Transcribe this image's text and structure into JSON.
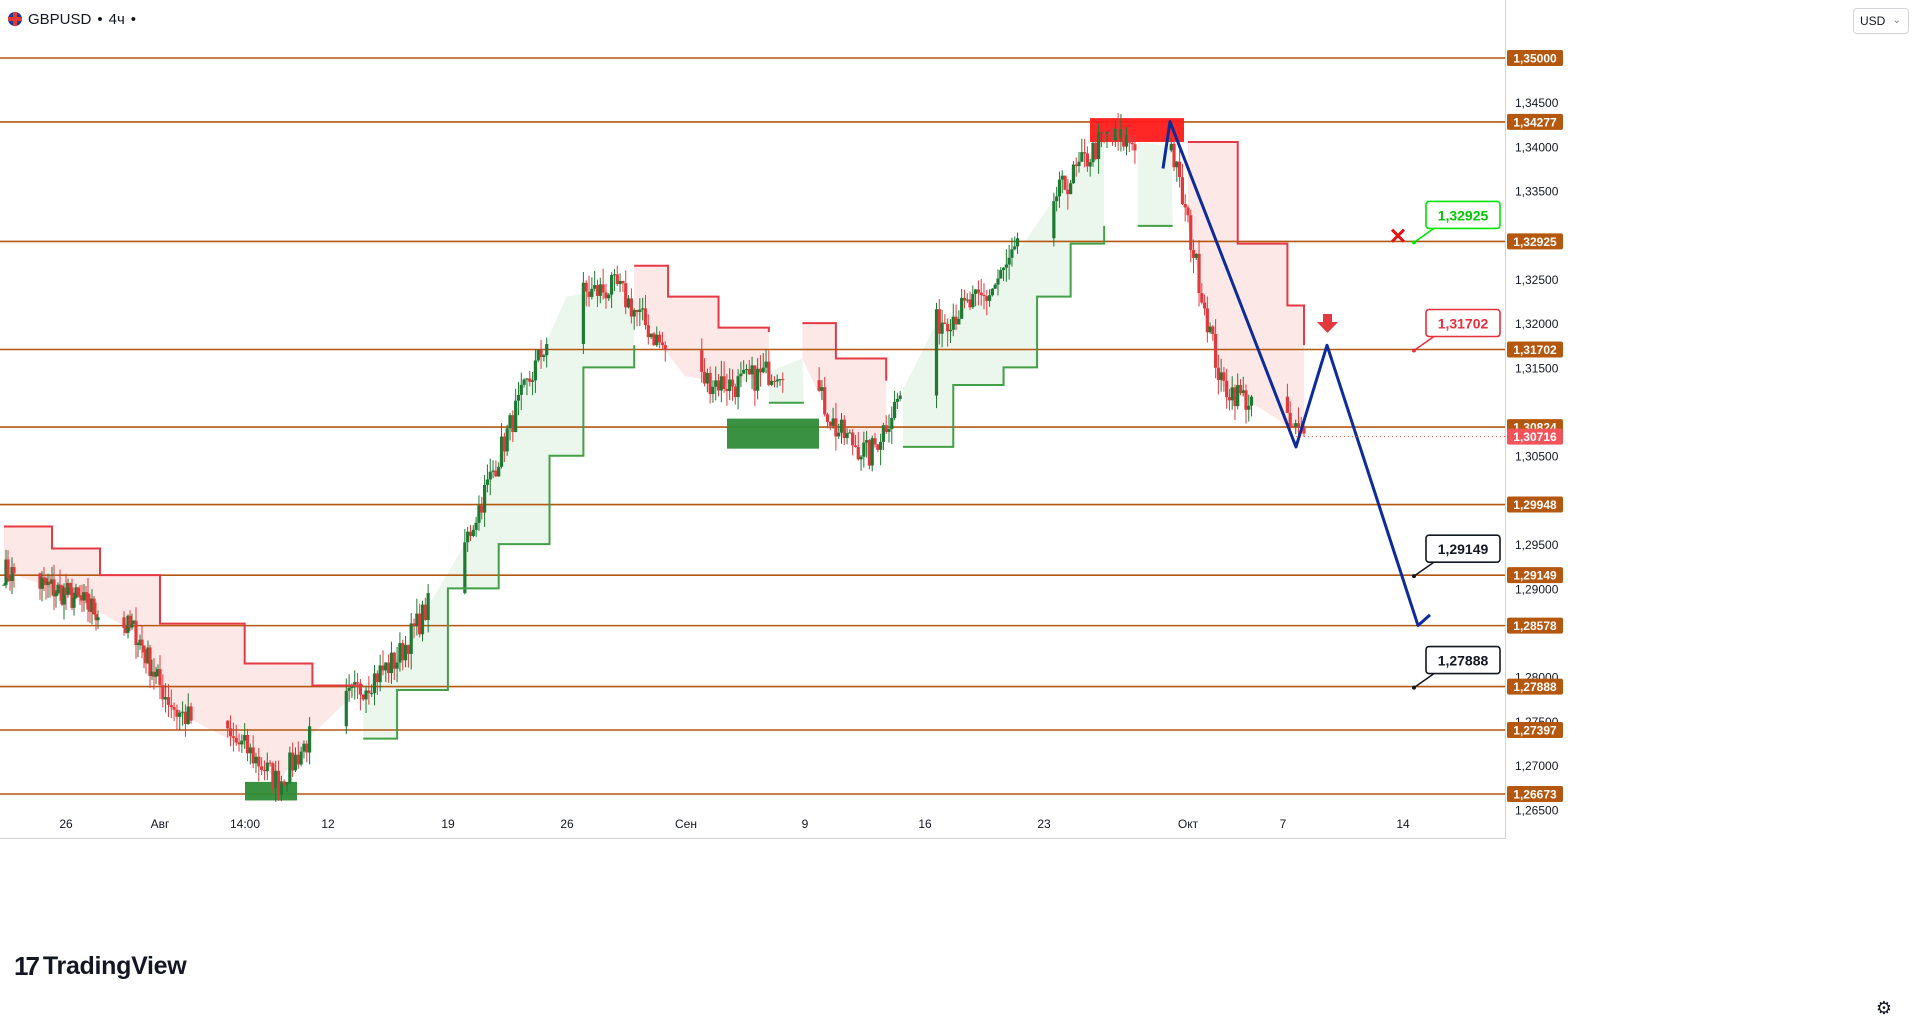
{
  "header": {
    "symbol": "GBPUSD",
    "interval": "4ч",
    "suffix": "•"
  },
  "currency_button": {
    "label": "USD",
    "chevron": "⌄"
  },
  "branding": {
    "logo_text": "TradingView",
    "logo_mark": "17"
  },
  "settings_icon": "gear-icon",
  "colors": {
    "level_line": "#b4570f",
    "level_badge": "#b4570f",
    "bull_candle": "#1e7a32",
    "bear_candle": "#e03a3e",
    "trend_up": "#43a047",
    "trend_down": "#e53945",
    "trend_up_fill": "#e8f5e9",
    "trend_down_fill": "#fde4e4",
    "path": "#0d2b9a",
    "current_price": "#f2545b",
    "supply_zone": "#ff1a1a",
    "demand_zone": "#2e8b37"
  },
  "chart_data": {
    "type": "candlestick",
    "symbol": "GBPUSD",
    "interval": "4ч",
    "ylim": [
      1.2645,
      1.3525
    ],
    "price_axis_ticks": [
      "1,34500",
      "1,34000",
      "1,33500",
      "1,32500",
      "1,32000",
      "1,31500",
      "1,30500",
      "1,29500",
      "1,29000",
      "1,28000",
      "1,27500",
      "1,27000",
      "1,26500"
    ],
    "time_axis_labels": [
      "26",
      "Авг",
      "14:00",
      "12",
      "19",
      "26",
      "Сен",
      "9",
      "16",
      "23",
      "Окт",
      "7",
      "14"
    ],
    "horizontal_levels": [
      {
        "price": 1.35,
        "label": "1,35000"
      },
      {
        "price": 1.34277,
        "label": "1,34277"
      },
      {
        "price": 1.32925,
        "label": "1,32925"
      },
      {
        "price": 1.31702,
        "label": "1,31702"
      },
      {
        "price": 1.30824,
        "label": "1,30824"
      },
      {
        "price": 1.29948,
        "label": "1,29948"
      },
      {
        "price": 1.29149,
        "label": "1,29149"
      },
      {
        "price": 1.28578,
        "label": "1,28578"
      },
      {
        "price": 1.27888,
        "label": "1,27888"
      },
      {
        "price": 1.27397,
        "label": "1,27397"
      },
      {
        "price": 1.26673,
        "label": "1,26673"
      }
    ],
    "current_price": {
      "price": 1.30716,
      "label": "1,30716"
    },
    "target_callouts": [
      {
        "label": "1,32925",
        "price": 1.32925,
        "style": "green",
        "status": "cancelled"
      },
      {
        "label": "1,31702",
        "price": 1.31702,
        "style": "red"
      },
      {
        "label": "1,29149",
        "price": 1.29149,
        "style": "black"
      },
      {
        "label": "1,27888",
        "price": 1.27888,
        "style": "black"
      }
    ],
    "zones": [
      {
        "type": "supply",
        "price_top": 1.3432,
        "price_bottom": 1.3405
      },
      {
        "type": "demand",
        "price_top": 1.3092,
        "price_bottom": 1.3058
      },
      {
        "type": "demand",
        "price_top": 1.2681,
        "price_bottom": 1.266
      }
    ],
    "projected_path_prices": [
      1.3375,
      1.3428,
      1.306,
      1.3175,
      1.2858,
      1.287
    ],
    "candle_keypoints": [
      {
        "date": "2024-07-19",
        "close": 1.292
      },
      {
        "date": "2024-07-24",
        "close": 1.2895
      },
      {
        "date": "2024-07-30",
        "close": 1.285
      },
      {
        "date": "2024-08-02",
        "close": 1.276
      },
      {
        "date": "2024-08-06",
        "close": 1.272
      },
      {
        "date": "2024-08-08",
        "close": 1.268
      },
      {
        "date": "2024-08-10",
        "close": 1.2735
      },
      {
        "date": "2024-08-13",
        "close": 1.279
      },
      {
        "date": "2024-08-15",
        "close": 1.282
      },
      {
        "date": "2024-08-19",
        "close": 1.295
      },
      {
        "date": "2024-08-22",
        "close": 1.31
      },
      {
        "date": "2024-08-25",
        "close": 1.323
      },
      {
        "date": "2024-08-28",
        "close": 1.324
      },
      {
        "date": "2024-09-01",
        "close": 1.314
      },
      {
        "date": "2024-09-04",
        "close": 1.313
      },
      {
        "date": "2024-09-08",
        "close": 1.316
      },
      {
        "date": "2024-09-10",
        "close": 1.308
      },
      {
        "date": "2024-09-12",
        "close": 1.305
      },
      {
        "date": "2024-09-16",
        "close": 1.32
      },
      {
        "date": "2024-09-19",
        "close": 1.323
      },
      {
        "date": "2024-09-23",
        "close": 1.334
      },
      {
        "date": "2024-09-26",
        "close": 1.341
      },
      {
        "date": "2024-09-30",
        "close": 1.34
      },
      {
        "date": "2024-10-03",
        "close": 1.313
      },
      {
        "date": "2024-10-04",
        "close": 1.312
      },
      {
        "date": "2024-10-08",
        "close": 1.3072
      }
    ],
    "trend_stop_lines": [
      {
        "trend": "down",
        "points": [
          [
            "2024-07-19",
            1.297
          ],
          [
            "2024-07-23",
            1.2945
          ],
          [
            "2024-07-27",
            1.2915
          ],
          [
            "2024-08-01",
            1.286
          ],
          [
            "2024-08-06",
            1.2815
          ],
          [
            "2024-08-10",
            1.279
          ],
          [
            "2024-08-13",
            1.279
          ]
        ]
      },
      {
        "trend": "up",
        "points": [
          [
            "2024-08-13",
            1.273
          ],
          [
            "2024-08-15",
            1.2785
          ],
          [
            "2024-08-18",
            1.29
          ],
          [
            "2024-08-21",
            1.295
          ],
          [
            "2024-08-24",
            1.305
          ],
          [
            "2024-08-26",
            1.315
          ],
          [
            "2024-08-29",
            1.3175
          ]
        ]
      },
      {
        "trend": "down",
        "points": [
          [
            "2024-08-29",
            1.3265
          ],
          [
            "2024-08-31",
            1.323
          ],
          [
            "2024-09-03",
            1.3195
          ],
          [
            "2024-09-06",
            1.319
          ]
        ]
      },
      {
        "trend": "up",
        "points": [
          [
            "2024-09-06",
            1.311
          ]
        ]
      },
      {
        "trend": "down",
        "points": [
          [
            "2024-09-08",
            1.32
          ],
          [
            "2024-09-10",
            1.316
          ],
          [
            "2024-09-13",
            1.3135
          ]
        ]
      },
      {
        "trend": "up",
        "points": [
          [
            "2024-09-14",
            1.306
          ],
          [
            "2024-09-17",
            1.313
          ],
          [
            "2024-09-20",
            1.315
          ],
          [
            "2024-09-22",
            1.323
          ],
          [
            "2024-09-24",
            1.329
          ],
          [
            "2024-09-26",
            1.331
          ]
        ]
      },
      {
        "trend": "up",
        "points": [
          [
            "2024-09-28",
            1.331
          ]
        ]
      },
      {
        "trend": "down",
        "points": [
          [
            "2024-10-01",
            1.3405
          ],
          [
            "2024-10-04",
            1.329
          ],
          [
            "2024-10-07",
            1.322
          ],
          [
            "2024-10-08",
            1.3175
          ]
        ]
      }
    ]
  }
}
